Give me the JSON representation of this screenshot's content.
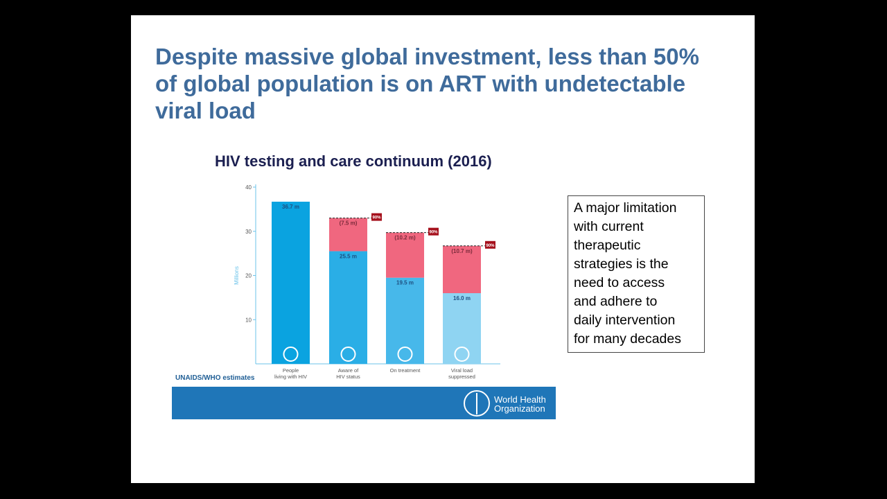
{
  "slide": {
    "title": "Despite massive global investment, less than 50%\nof global population is on ART with undetectable\nviral load",
    "note": "A major limitation\nwith current\ntherapeutic\nstrategies is the\nneed to access\nand adhere to\ndaily intervention\nfor many decades",
    "source": "UNAIDS/WHO estimates",
    "org": "World Health\nOrganization"
  },
  "chart_data": {
    "type": "stacked_bar",
    "title": "HIV testing and care continuum (2016)",
    "y_label": "Millions",
    "categories": [
      "People\nliving with HIV",
      "Aware of\nHIV status",
      "On treatment",
      "Viral load\nsuppressed"
    ],
    "ylim": [
      0,
      40
    ],
    "yticks": [
      10,
      20,
      30,
      40
    ],
    "series": [
      {
        "colors": [
          "#0aa3e0",
          "#2aaee6",
          "#47b8ea",
          "#8fd4f2"
        ],
        "values": [
          36.7,
          25.5,
          19.5,
          16.0
        ],
        "value_labels": [
          "36.7 m",
          "25.5 m",
          "19.5 m",
          "16.0 m"
        ]
      },
      {
        "color": "#f0677f",
        "values": [
          null,
          7.5,
          10.2,
          10.7
        ],
        "value_labels": [
          null,
          "(7.5 m)",
          "(10.2 m)",
          "(10.7 m)"
        ]
      }
    ],
    "target_labels": [
      null,
      "90%",
      "90%",
      "90%"
    ]
  }
}
